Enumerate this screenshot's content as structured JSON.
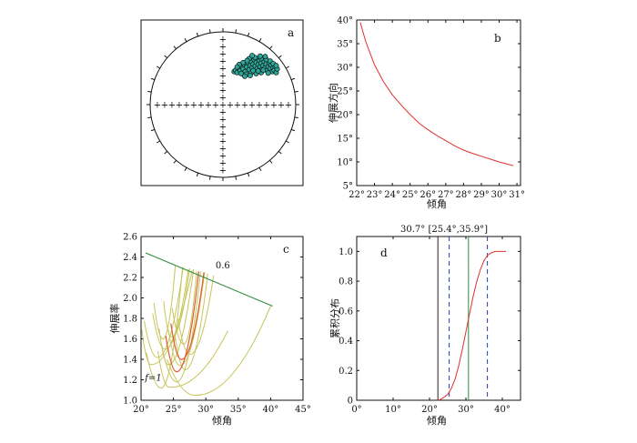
{
  "chart_data": [
    {
      "panel": "a",
      "type": "scatter",
      "projection": "stereonet",
      "point_color": "#2aa89a",
      "points": [
        [
          -1.35,
          0.35
        ],
        [
          -1.28,
          0.42
        ],
        [
          -1.2,
          0.3
        ],
        [
          -1.12,
          0.52
        ],
        [
          -1.05,
          0.4
        ],
        [
          -0.98,
          0.62
        ],
        [
          -0.9,
          0.48
        ],
        [
          -0.85,
          0.7
        ],
        [
          -0.8,
          0.35
        ],
        [
          -0.72,
          0.58
        ],
        [
          -0.66,
          0.78
        ],
        [
          -0.6,
          0.45
        ],
        [
          -0.55,
          0.65
        ],
        [
          -0.5,
          0.85
        ],
        [
          -0.45,
          0.55
        ],
        [
          -0.4,
          0.72
        ],
        [
          -0.35,
          0.95
        ],
        [
          -0.3,
          0.62
        ],
        [
          -0.25,
          0.8
        ],
        [
          -0.2,
          0.5
        ],
        [
          -0.15,
          0.7
        ],
        [
          -0.1,
          0.9
        ],
        [
          -0.05,
          0.6
        ],
        [
          0.0,
          0.78
        ],
        [
          0.05,
          0.45
        ],
        [
          0.1,
          0.65
        ],
        [
          0.15,
          0.85
        ],
        [
          0.2,
          0.55
        ],
        [
          0.25,
          0.72
        ],
        [
          0.3,
          0.4
        ],
        [
          0.35,
          0.6
        ],
        [
          0.4,
          0.78
        ],
        [
          0.45,
          0.5
        ],
        [
          0.5,
          0.68
        ],
        [
          0.55,
          0.35
        ],
        [
          0.6,
          0.55
        ],
        [
          0.65,
          0.42
        ],
        [
          0.7,
          0.6
        ],
        [
          0.75,
          0.3
        ],
        [
          0.8,
          0.48
        ],
        [
          -1.0,
          0.25
        ],
        [
          -0.75,
          0.22
        ],
        [
          -0.5,
          0.3
        ],
        [
          -0.25,
          0.25
        ],
        [
          0.0,
          0.3
        ],
        [
          -0.6,
          1.0
        ],
        [
          -0.3,
          1.05
        ],
        [
          0.0,
          1.0
        ],
        [
          0.25,
          0.95
        ],
        [
          0.45,
          0.88
        ],
        [
          -0.9,
          0.8
        ],
        [
          -1.1,
          0.7
        ],
        [
          0.6,
          0.75
        ],
        [
          0.75,
          0.65
        ],
        [
          -0.4,
          0.4
        ],
        [
          -0.15,
          0.38
        ],
        [
          0.1,
          0.42
        ],
        [
          0.35,
          0.28
        ],
        [
          -0.7,
          0.9
        ],
        [
          -0.05,
          1.12
        ],
        [
          0.2,
          1.1
        ],
        [
          -0.45,
          1.15
        ],
        [
          -1.2,
          0.58
        ],
        [
          -0.82,
          0.12
        ],
        [
          -0.55,
          0.15
        ]
      ],
      "label_display": "a"
    },
    {
      "panel": "b",
      "type": "line",
      "xlabel": "倾角",
      "ylabel": "伸展方向",
      "xlim": [
        22,
        31.2
      ],
      "ylim": [
        5,
        40
      ],
      "x_ticks": [
        "22°",
        "23°",
        "24°",
        "25°",
        "26°",
        "27°",
        "28°",
        "29°",
        "30°",
        "31°"
      ],
      "y_ticks": [
        "5°",
        "10°",
        "15°",
        "20°",
        "25°",
        "30°",
        "35°",
        "40°"
      ],
      "line_color": "#e0302a",
      "x": [
        22.2,
        22.5,
        23,
        23.5,
        24,
        24.5,
        25,
        25.5,
        26,
        26.5,
        27,
        27.5,
        28,
        28.5,
        29,
        29.5,
        30,
        30.5,
        30.8
      ],
      "y": [
        39.5,
        35.5,
        30.5,
        27,
        24.2,
        22,
        20,
        18.2,
        16.8,
        15.6,
        14.5,
        13.4,
        12.5,
        11.8,
        11.2,
        10.6,
        10.0,
        9.5,
        9.2
      ],
      "label_display": "b"
    },
    {
      "panel": "c",
      "type": "line",
      "xlabel": "倾角",
      "ylabel": "伸展率",
      "xlim": [
        20,
        45
      ],
      "ylim": [
        1.0,
        2.6
      ],
      "x_ticks": [
        "20°",
        "25°",
        "30°",
        "35°",
        "40°",
        "45°"
      ],
      "y_ticks": [
        "1.0",
        "1.2",
        "1.4",
        "1.6",
        "1.8",
        "2.0",
        "2.2",
        "2.4",
        "2.6"
      ],
      "envelope": {
        "color": "#2e8b3a",
        "x": [
          20.7,
          40.3
        ],
        "y": [
          2.44,
          1.92
        ]
      },
      "curve_color": "#c8c45a",
      "highlight_color": "#e05a30",
      "curves": [
        {
          "x0": 20.1,
          "apex": [
            21.4,
            1.35
          ],
          "end": [
            27.9,
            2.27
          ]
        },
        {
          "x0": 20.5,
          "apex": [
            22.4,
            1.42
          ],
          "end": [
            26.5,
            2.3
          ]
        },
        {
          "x0": 20.8,
          "apex": [
            23.0,
            1.12
          ],
          "end": [
            26.4,
            2.3
          ]
        },
        {
          "x0": 21.8,
          "apex": [
            23.6,
            1.5
          ],
          "end": [
            27.3,
            2.28
          ]
        },
        {
          "x0": 22.0,
          "apex": [
            23.3,
            1.6
          ],
          "end": [
            25.3,
            2.32
          ]
        },
        {
          "x0": 22.8,
          "apex": [
            24.1,
            1.35
          ],
          "end": [
            28.1,
            2.28
          ]
        },
        {
          "x0": 23.5,
          "apex": [
            24.6,
            1.62
          ],
          "end": [
            27.5,
            2.29
          ]
        },
        {
          "x0": 23.2,
          "apex": [
            25.4,
            1.18
          ],
          "end": [
            29.2,
            2.26
          ]
        },
        {
          "x0": 24.2,
          "apex": [
            25.9,
            1.34
          ],
          "end": [
            29.8,
            2.25
          ]
        },
        {
          "x0": 24.8,
          "apex": [
            26.5,
            1.55
          ],
          "end": [
            28.6,
            2.26
          ]
        },
        {
          "x0": 25.2,
          "apex": [
            26.7,
            1.3
          ],
          "end": [
            30.3,
            2.24
          ]
        },
        {
          "x0": 24.0,
          "apex": [
            28.0,
            1.05
          ],
          "end": [
            40.0,
            1.92
          ]
        },
        {
          "x0": 25.7,
          "apex": [
            27.4,
            1.45
          ],
          "end": [
            31.2,
            2.22
          ]
        },
        {
          "x0": 22.6,
          "apex": [
            24.2,
            1.13
          ],
          "end": [
            33.4,
            1.68
          ]
        }
      ],
      "highlight_curves": [
        {
          "x0": 23.8,
          "apex": [
            25.4,
            1.28
          ],
          "end": [
            28.9,
            2.26
          ]
        },
        {
          "x0": 24.6,
          "apex": [
            26.1,
            1.4
          ],
          "end": [
            29.7,
            2.25
          ]
        }
      ],
      "annotations": {
        "top": "0.6",
        "left": "f=1"
      },
      "label_display": "c"
    },
    {
      "panel": "d",
      "type": "line",
      "xlabel": "倾角",
      "ylabel": "累积分布",
      "xlim": [
        0,
        45
      ],
      "ylim": [
        0,
        1.1
      ],
      "x_ticks": [
        "0°",
        "10°",
        "20°",
        "30°",
        "40°"
      ],
      "y_ticks": [
        "0",
        "0.2",
        "0.4",
        "0.6",
        "0.8",
        "1.0"
      ],
      "cdf_color": "#e0302a",
      "x": [
        22.3,
        23,
        24,
        25,
        26,
        27,
        28,
        29,
        30,
        31,
        32,
        33,
        34,
        35,
        36,
        37,
        38,
        39,
        40,
        41
      ],
      "y": [
        0,
        0.005,
        0.02,
        0.04,
        0.08,
        0.14,
        0.23,
        0.34,
        0.46,
        0.58,
        0.7,
        0.8,
        0.88,
        0.94,
        0.975,
        0.99,
        1.0,
        1.0,
        1.0,
        1.0
      ],
      "vlines": [
        {
          "x": 22.3,
          "color": "#222222",
          "style": "solid"
        },
        {
          "x": 25.4,
          "color": "#2238c8",
          "style": "dashed"
        },
        {
          "x": 30.7,
          "color": "#2e8b3a",
          "style": "solid"
        },
        {
          "x": 35.9,
          "color": "#2238c8",
          "style": "dashed"
        }
      ],
      "annotation": "30.7°  [25.4°,35.9°]",
      "label_display": "d"
    }
  ]
}
